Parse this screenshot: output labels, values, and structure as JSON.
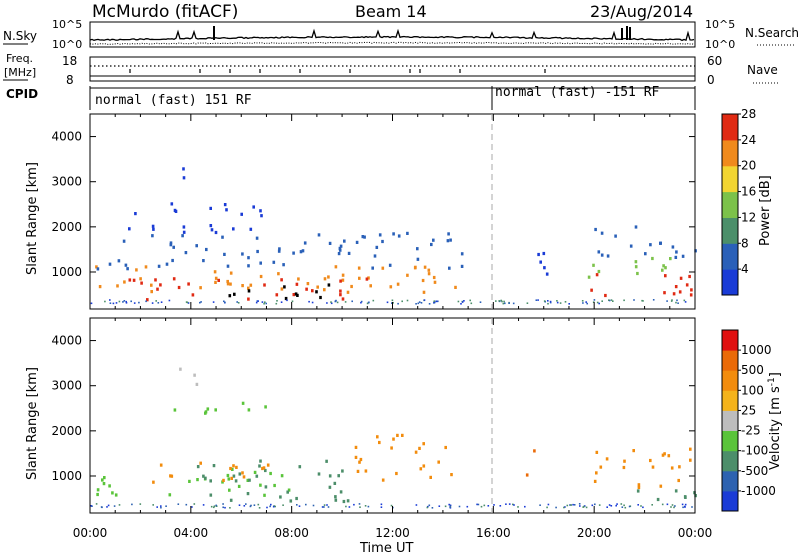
{
  "header": {
    "title": "McMurdo (fitACF)",
    "beam": "Beam 14",
    "date": "23/Aug/2014"
  },
  "noise_panel": {
    "left_label": "N.Sky",
    "right_label": "N.Search",
    "left_ticks": [
      "10^5",
      "10^0"
    ],
    "right_ticks": [
      "10^5",
      "10^0"
    ]
  },
  "freq_panel": {
    "left_label_1": "Freq.",
    "left_label_2": "[MHz]",
    "left_ticks": [
      "18",
      "8"
    ],
    "right_label": "Nave",
    "right_ticks": [
      "60",
      "0"
    ]
  },
  "cpid_panel": {
    "label": "CPID",
    "segments": [
      {
        "text": "normal (fast) 151 RF"
      },
      {
        "text": "normal (fast) -151 RF"
      }
    ]
  },
  "time_axis": {
    "label": "Time UT",
    "ticks": [
      "00:00",
      "04:00",
      "08:00",
      "12:00",
      "16:00",
      "20:00",
      "00:00"
    ],
    "range_hours": [
      0,
      24
    ]
  },
  "chart_data": [
    {
      "type": "heatmap",
      "name": "Power",
      "ylabel": "Slant Range [km]",
      "xlabel": "",
      "x_range_hours": [
        0,
        24
      ],
      "ylim": [
        180,
        4500
      ],
      "yticks": [
        1000,
        2000,
        3000,
        4000
      ],
      "colorbar": {
        "label": "Power [dB]",
        "ticks": [
          "4",
          "8",
          "12",
          "16",
          "20",
          "24",
          "28"
        ],
        "range": [
          0,
          30
        ],
        "colors": [
          "#1a3bd6",
          "#2a60b8",
          "#4b8f6a",
          "#7cc24a",
          "#f2d531",
          "#f08a1c",
          "#e02a13"
        ]
      },
      "regions": [
        {
          "x": [
            0.2,
            14.5
          ],
          "y": [
            550,
            1200
          ],
          "level": 5
        },
        {
          "x": [
            1.5,
            11.0
          ],
          "y": [
            420,
            900
          ],
          "level": 6
        },
        {
          "x": [
            4.5,
            9.5
          ],
          "y": [
            400,
            750
          ],
          "level": 7
        },
        {
          "x": [
            0.2,
            14.8
          ],
          "y": [
            1100,
            1900
          ],
          "level": 1
        },
        {
          "x": [
            1.5,
            7.0
          ],
          "y": [
            1900,
            2600
          ],
          "level": 0
        },
        {
          "x": [
            3.5,
            4.2
          ],
          "y": [
            3000,
            3550
          ],
          "level": 0
        },
        {
          "x": [
            17.0,
            18.2
          ],
          "y": [
            950,
            1700
          ],
          "level": 0
        },
        {
          "x": [
            19.5,
            24.0
          ],
          "y": [
            500,
            1000
          ],
          "level": 6
        },
        {
          "x": [
            19.5,
            24.0
          ],
          "y": [
            900,
            1350
          ],
          "level": 3
        },
        {
          "x": [
            20.0,
            24.0
          ],
          "y": [
            1350,
            2100
          ],
          "level": 1
        }
      ]
    },
    {
      "type": "heatmap",
      "name": "Velocity",
      "ylabel": "Slant Range [km]",
      "xlabel": "Time UT",
      "x_range_hours": [
        0,
        24
      ],
      "ylim": [
        180,
        4500
      ],
      "yticks": [
        1000,
        2000,
        3000,
        4000
      ],
      "colorbar": {
        "label": "Velocity [m s^-1]",
        "ticks": [
          "1000",
          "500",
          "100",
          "25",
          "-25",
          "-100",
          "-500",
          "-1000"
        ],
        "range": [
          -1000,
          1000
        ],
        "colors": [
          "#1a3bd6",
          "#2d62b0",
          "#4c8e6a",
          "#5ac43a",
          "#bdbdbd",
          "#f4b31b",
          "#f28c0d",
          "#ea6a08",
          "#e01010"
        ]
      },
      "regions": [
        {
          "x": [
            0.2,
            8.0
          ],
          "y": [
            600,
            1200
          ],
          "level": 3
        },
        {
          "x": [
            4.0,
            10.5
          ],
          "y": [
            450,
            1400
          ],
          "level": 2
        },
        {
          "x": [
            2.0,
            7.5
          ],
          "y": [
            850,
            1350
          ],
          "level": 6
        },
        {
          "x": [
            10.5,
            14.5
          ],
          "y": [
            900,
            1950
          ],
          "level": 6
        },
        {
          "x": [
            17.0,
            17.6
          ],
          "y": [
            1050,
            1650
          ],
          "level": 7
        },
        {
          "x": [
            19.8,
            24.0
          ],
          "y": [
            750,
            1650
          ],
          "level": 6
        },
        {
          "x": [
            21.0,
            24.0
          ],
          "y": [
            500,
            900
          ],
          "level": 2
        },
        {
          "x": [
            3.2,
            7.0
          ],
          "y": [
            2300,
            2700
          ],
          "level": 3
        },
        {
          "x": [
            3.3,
            4.3
          ],
          "y": [
            3000,
            3500
          ],
          "level": 4
        }
      ]
    }
  ]
}
